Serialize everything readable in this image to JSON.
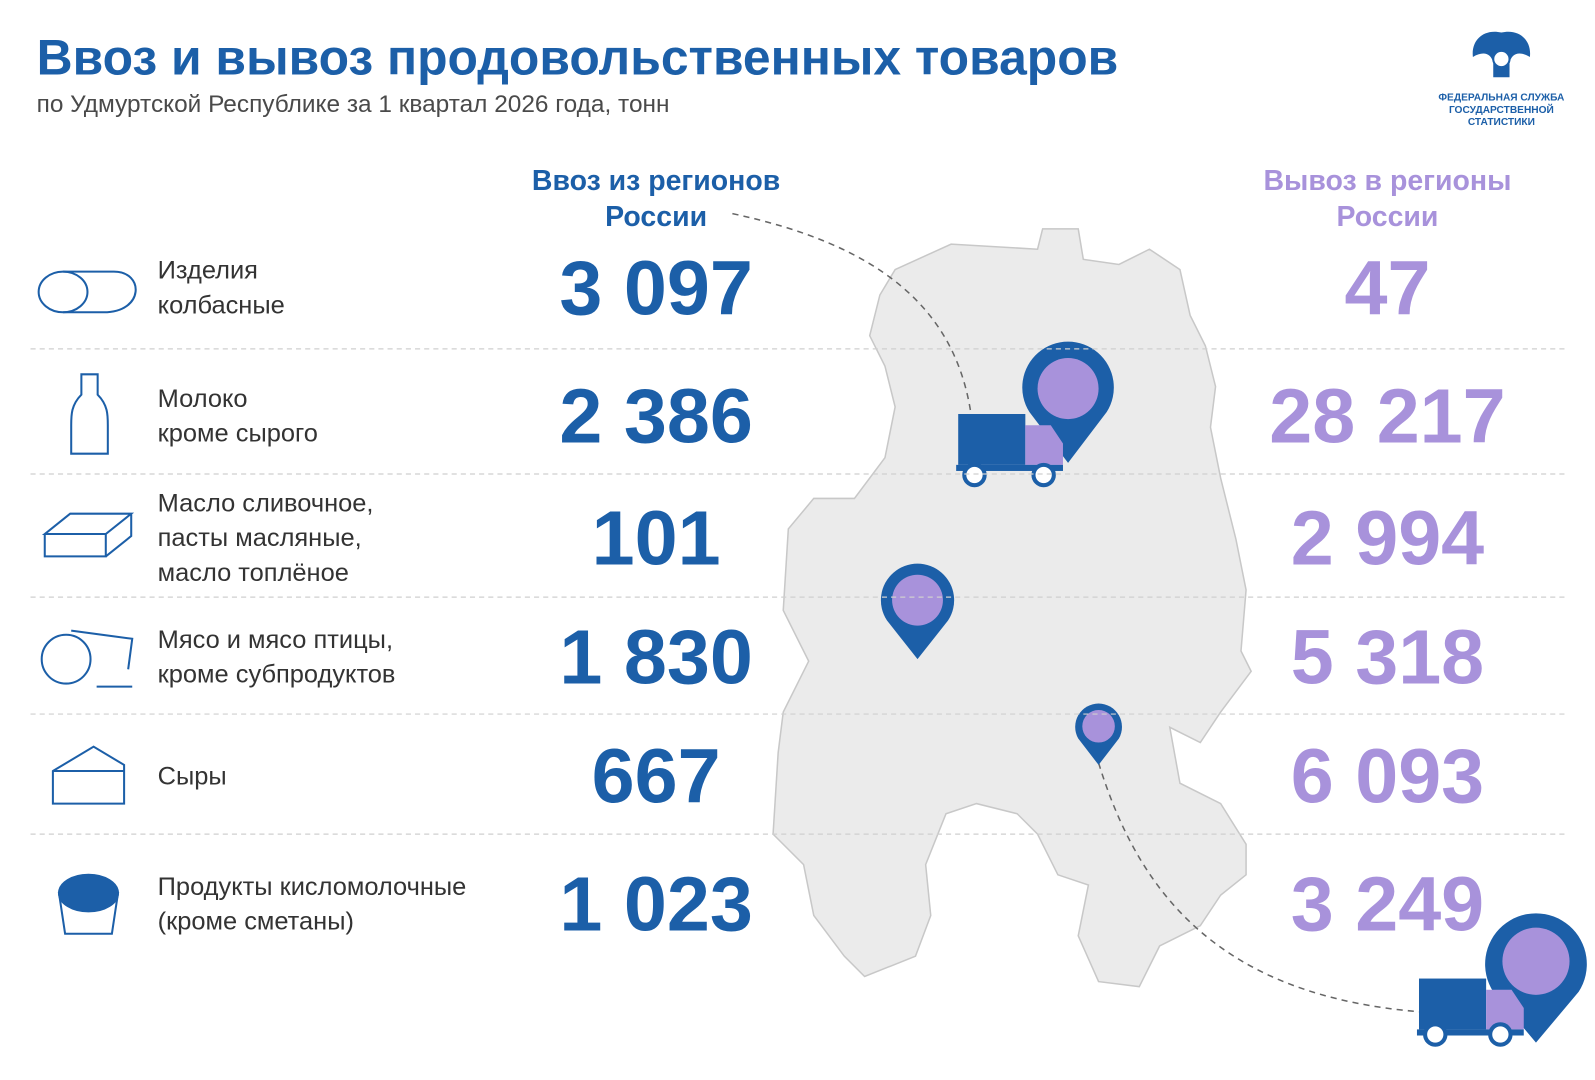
{
  "header": {
    "title": "Ввоз и вывоз продовольственных товаров",
    "subtitle": "по Удмуртской Республике за 1 квартал 2026 года, тонн"
  },
  "logo": {
    "lines": [
      "ФЕДЕРАЛЬНАЯ СЛУЖБА",
      "ГОСУДАРСТВЕННОЙ",
      "СТАТИСТИКИ"
    ]
  },
  "columns": {
    "import": [
      "Ввоз из регионов",
      "России"
    ],
    "export": [
      "Вывоз в регионы",
      "России"
    ]
  },
  "rows": [
    {
      "label": [
        "Изделия",
        "колбасные"
      ],
      "import": "3 097",
      "export": "47"
    },
    {
      "label": [
        "Молоко",
        "кроме сырого"
      ],
      "import": "2 386",
      "export": "28 217"
    },
    {
      "label": [
        "Масло сливочное,",
        "пасты масляные,",
        "масло топлёное"
      ],
      "import": "101",
      "export": "2 994"
    },
    {
      "label": [
        "Мясо и мясо птицы,",
        "кроме субпродуктов"
      ],
      "import": "1 830",
      "export": "5 318"
    },
    {
      "label": [
        "Сыры"
      ],
      "import": "667",
      "export": "6 093"
    },
    {
      "label": [
        "Продукты кисломолочные",
        "(кроме сметаны)"
      ],
      "import": "1 023",
      "export": "3 249"
    }
  ]
}
